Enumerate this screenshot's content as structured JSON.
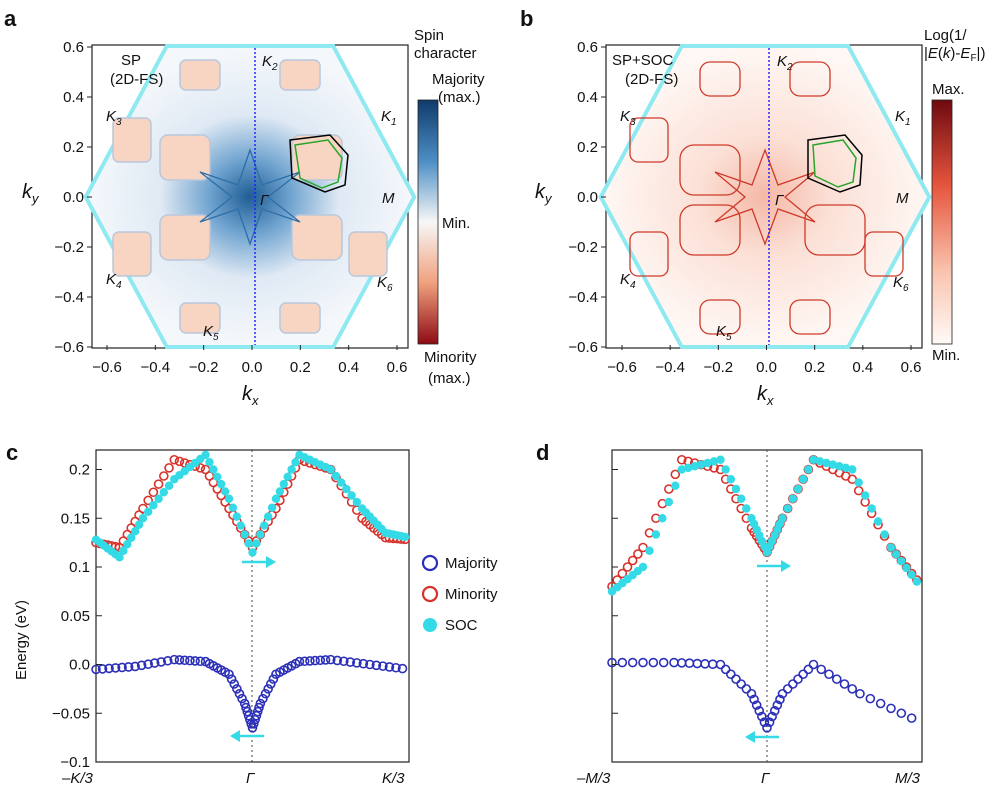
{
  "panels": {
    "a": {
      "letter": "a",
      "title_line1": "SP",
      "title_line2": "(2D-FS)",
      "colorbar_title_line1": "Spin",
      "colorbar_title_line2": "character",
      "colorbar_top_line1": "Majority",
      "colorbar_top_line2": "(max.)",
      "colorbar_mid": "Min.",
      "colorbar_bottom_line1": "Minority",
      "colorbar_bottom_line2": "(max.)"
    },
    "b": {
      "letter": "b",
      "title_line1": "SP+SOC",
      "title_line2": "(2D-FS)",
      "colorbar_title_line1": "Log(1/",
      "colorbar_title_line2": "|E(k)-EF|)",
      "colorbar_top": "Max.",
      "colorbar_bottom": "Min."
    },
    "c": {
      "letter": "c"
    },
    "d": {
      "letter": "d"
    }
  },
  "hex_labels": {
    "K1": "K1",
    "K2": "K2",
    "K3": "K3",
    "K4": "K4",
    "K5": "K5",
    "K6": "K6",
    "M": "M",
    "Gamma": "Γ"
  },
  "axis_labels": {
    "kx": "kx",
    "ky": "ky",
    "energy": "Energy (eV)"
  },
  "legend": [
    "Majority",
    "Minority",
    "SOC"
  ],
  "colors": {
    "majority": "#2b2fb8",
    "minority": "#d8302a",
    "soc": "#34dbe6",
    "hexagon": "#8ee9f0",
    "bz_line": "#1a1aff"
  },
  "chart_data": [
    {
      "type": "heatmap",
      "panel": "a",
      "xlabel": "kx",
      "ylabel": "ky",
      "xlim": [
        -0.65,
        0.65
      ],
      "ylim": [
        -0.6,
        0.6
      ],
      "x_ticks": [
        "-0.6",
        "-0.4",
        "-0.2",
        "0.0",
        "0.2",
        "0.4",
        "0.6"
      ],
      "y_ticks": [
        "0.6",
        "0.4",
        "0.2",
        "0.0",
        "-0.2",
        "-0.4",
        "-0.6"
      ],
      "colormap": "blue-white-red (majority to minority spin)",
      "grid": false
    },
    {
      "type": "heatmap",
      "panel": "b",
      "xlabel": "kx",
      "ylabel": "ky",
      "xlim": [
        -0.65,
        0.65
      ],
      "ylim": [
        -0.6,
        0.6
      ],
      "x_ticks": [
        "-0.6",
        "-0.4",
        "-0.2",
        "0.0",
        "0.2",
        "0.4",
        "0.6"
      ],
      "y_ticks": [
        "0.6",
        "0.4",
        "0.2",
        "0.0",
        "-0.2",
        "-0.4",
        "-0.6"
      ],
      "colormap": "white-red log scale",
      "grid": false
    },
    {
      "type": "scatter",
      "panel": "c",
      "ylabel": "Energy (eV)",
      "x_ticks": [
        "–K/3",
        "Γ",
        "K/3"
      ],
      "y_ticks": [
        "0.2",
        "0.15",
        "0.1",
        "0.05",
        "0.0",
        "-0.05",
        "-0.1"
      ],
      "xlim": [
        -1,
        1
      ],
      "ylim": [
        -0.1,
        0.22
      ],
      "series": [
        {
          "name": "Majority",
          "x": [
            -1.0,
            -0.75,
            -0.5,
            -0.3,
            -0.15,
            -0.05,
            0.0,
            0.05,
            0.15,
            0.3,
            0.5,
            0.75,
            1.0
          ],
          "y": [
            -0.005,
            -0.002,
            0.005,
            0.003,
            -0.01,
            -0.04,
            -0.065,
            -0.04,
            -0.01,
            0.003,
            0.005,
            0.0,
            -0.005
          ]
        },
        {
          "name": "Minority",
          "x": [
            -1.0,
            -0.85,
            -0.7,
            -0.5,
            -0.3,
            -0.15,
            0.0,
            0.15,
            0.3,
            0.5,
            0.7,
            0.85,
            1.0
          ],
          "y": [
            0.125,
            0.12,
            0.16,
            0.21,
            0.2,
            0.16,
            0.12,
            0.16,
            0.21,
            0.2,
            0.15,
            0.13,
            0.128
          ]
        },
        {
          "name": "SOC",
          "x": [
            -1.0,
            -0.85,
            -0.7,
            -0.5,
            -0.3,
            -0.15,
            0.0,
            0.15,
            0.3,
            0.5,
            0.7,
            0.85,
            1.0
          ],
          "y": [
            0.128,
            0.11,
            0.15,
            0.19,
            0.215,
            0.17,
            0.115,
            0.17,
            0.215,
            0.2,
            0.16,
            0.135,
            0.13
          ]
        }
      ]
    },
    {
      "type": "scatter",
      "panel": "d",
      "x_ticks": [
        "–M/3",
        "Γ",
        "M/3"
      ],
      "xlim": [
        -1,
        1
      ],
      "ylim": [
        -0.1,
        0.22
      ],
      "series": [
        {
          "name": "Majority",
          "x": [
            -1.0,
            -0.6,
            -0.3,
            -0.1,
            0.0,
            0.1,
            0.3,
            0.6,
            1.0
          ],
          "y": [
            0.002,
            0.002,
            0.0,
            -0.03,
            -0.065,
            -0.03,
            0.0,
            -0.03,
            -0.06
          ]
        },
        {
          "name": "Minority",
          "x": [
            -1.0,
            -0.8,
            -0.55,
            -0.3,
            -0.1,
            0.0,
            0.1,
            0.3,
            0.55,
            0.8,
            1.0
          ],
          "y": [
            0.08,
            0.12,
            0.21,
            0.2,
            0.14,
            0.115,
            0.15,
            0.21,
            0.19,
            0.12,
            0.08
          ]
        },
        {
          "name": "SOC",
          "x": [
            -1.0,
            -0.8,
            -0.55,
            -0.3,
            -0.1,
            0.0,
            0.1,
            0.3,
            0.55,
            0.8,
            1.0
          ],
          "y": [
            0.075,
            0.1,
            0.2,
            0.21,
            0.15,
            0.115,
            0.15,
            0.21,
            0.2,
            0.12,
            0.078
          ]
        }
      ]
    }
  ]
}
